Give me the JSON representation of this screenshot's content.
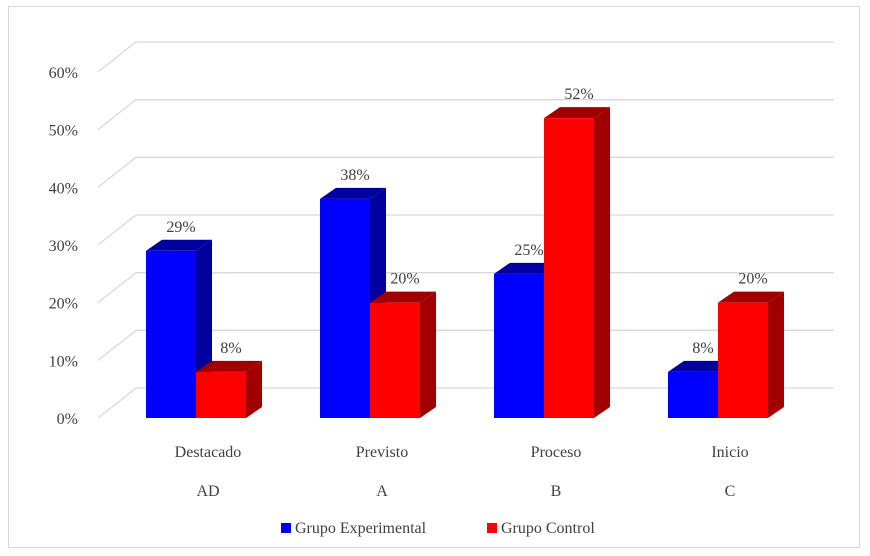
{
  "chart_data": {
    "type": "bar",
    "categories": [
      "Destacado",
      "Previsto",
      "Proceso",
      "Inicio"
    ],
    "category_codes": [
      "AD",
      "A",
      "B",
      "C"
    ],
    "series": [
      {
        "name": "Grupo Experimental",
        "values": [
          29,
          38,
          25,
          8
        ],
        "labels": [
          "29%",
          "38%",
          "25%",
          "8%"
        ],
        "color": "#0000ff",
        "side_color": "#00009e"
      },
      {
        "name": "Grupo Control",
        "values": [
          8,
          20,
          52,
          20
        ],
        "labels": [
          "8%",
          "20%",
          "52%",
          "20%"
        ],
        "color": "#ff0000",
        "side_color": "#a00000"
      }
    ],
    "y_ticks": [
      "0%",
      "10%",
      "20%",
      "30%",
      "40%",
      "50%",
      "60%"
    ],
    "ylim": [
      0,
      60
    ],
    "grid": true,
    "three_d": true,
    "legend_position": "bottom",
    "gridline_color": "#d9d9d9"
  }
}
